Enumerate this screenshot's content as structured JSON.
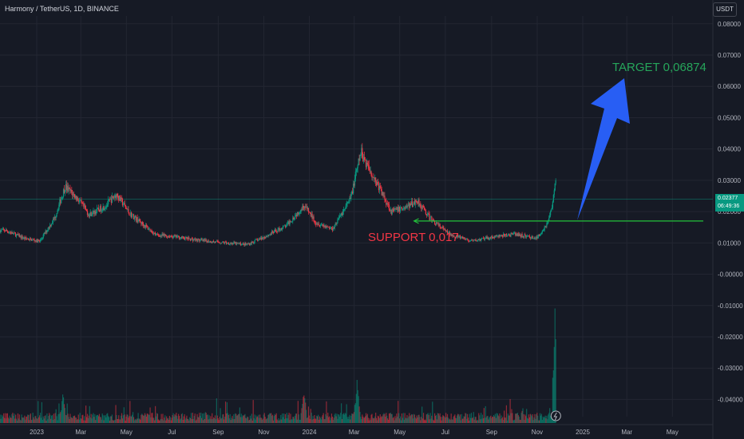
{
  "header": {
    "symbol_title": "Harmony / TetherUS, 1D, BINANCE",
    "currency": "USDT"
  },
  "price_tag": {
    "price": "0.02377",
    "countdown": "06:49:36"
  },
  "annotations": {
    "target": "TARGET 0,06874",
    "support": "SUPPORT 0,017"
  },
  "colors": {
    "background": "#161a25",
    "up": "#089981",
    "down": "#f23645",
    "target_text": "#26a65b",
    "support_line": "#22c13a",
    "arrow": "#2962ff",
    "grid": "#232632"
  },
  "chart_data": {
    "type": "candlestick",
    "symbol": "Harmony / TetherUS, 1D, BINANCE",
    "y_axis": {
      "ticks": [
        "0.08000",
        "0.07000",
        "0.06000",
        "0.05000",
        "0.04000",
        "0.03000",
        "0.02000",
        "0.01000",
        "-0.00000",
        "-0.01000",
        "-0.02000",
        "-0.03000",
        "-0.04000"
      ],
      "range": [
        -0.0455,
        0.0825
      ]
    },
    "x_axis": {
      "labels": [
        "2023",
        "Mar",
        "May",
        "Jul",
        "Sep",
        "Nov",
        "2024",
        "Mar",
        "May",
        "Jul",
        "Sep",
        "Nov",
        "2025",
        "Mar",
        "May"
      ],
      "label_dates": [
        "2023-01-01",
        "2023-03-01",
        "2023-05-01",
        "2023-07-01",
        "2023-09-01",
        "2023-11-01",
        "2024-01-01",
        "2024-03-01",
        "2024-05-01",
        "2024-07-01",
        "2024-09-01",
        "2024-11-01",
        "2025-01-01",
        "2025-03-01",
        "2025-05-01"
      ]
    },
    "price_path": [
      [
        "2022-11-20",
        0.014
      ],
      [
        "2022-12-15",
        0.0115
      ],
      [
        "2023-01-05",
        0.0105
      ],
      [
        "2023-01-25",
        0.018
      ],
      [
        "2023-02-08",
        0.028
      ],
      [
        "2023-02-25",
        0.024
      ],
      [
        "2023-03-12",
        0.019
      ],
      [
        "2023-04-01",
        0.0215
      ],
      [
        "2023-04-18",
        0.0255
      ],
      [
        "2023-05-05",
        0.0195
      ],
      [
        "2023-06-10",
        0.0125
      ],
      [
        "2023-07-05",
        0.012
      ],
      [
        "2023-08-01",
        0.011
      ],
      [
        "2023-09-01",
        0.0102
      ],
      [
        "2023-10-10",
        0.0095
      ],
      [
        "2023-11-01",
        0.0118
      ],
      [
        "2023-12-01",
        0.0155
      ],
      [
        "2023-12-25",
        0.022
      ],
      [
        "2024-01-10",
        0.0165
      ],
      [
        "2024-02-01",
        0.0145
      ],
      [
        "2024-02-25",
        0.024
      ],
      [
        "2024-03-10",
        0.039
      ],
      [
        "2024-03-25",
        0.032
      ],
      [
        "2024-04-08",
        0.0255
      ],
      [
        "2024-04-20",
        0.02
      ],
      [
        "2024-05-10",
        0.0215
      ],
      [
        "2024-05-25",
        0.0235
      ],
      [
        "2024-06-10",
        0.018
      ],
      [
        "2024-07-05",
        0.013
      ],
      [
        "2024-08-05",
        0.0105
      ],
      [
        "2024-09-01",
        0.0118
      ],
      [
        "2024-10-01",
        0.0128
      ],
      [
        "2024-11-01",
        0.0115
      ],
      [
        "2024-11-15",
        0.0165
      ],
      [
        "2024-11-22",
        0.023
      ],
      [
        "2024-11-26",
        0.03
      ]
    ],
    "volume_peaks": [
      [
        "2024-03-05",
        0.35
      ],
      [
        "2024-11-25",
        1.0
      ],
      [
        "2023-02-05",
        0.2
      ],
      [
        "2023-12-25",
        0.22
      ]
    ],
    "support_level": 0.017,
    "target_level": 0.06874,
    "current_price": 0.02377,
    "horizontal_lines": [
      0.024
    ]
  }
}
